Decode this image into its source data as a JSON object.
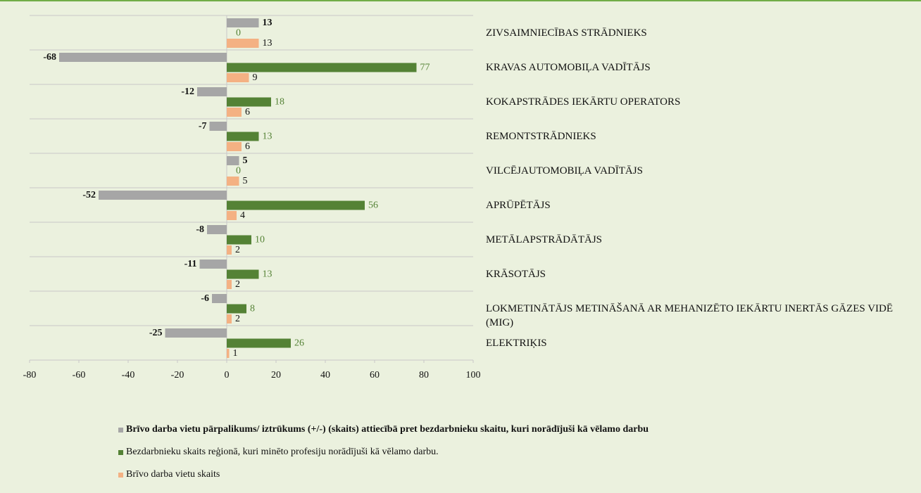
{
  "chart_data": {
    "type": "hbar",
    "categories": [
      "ZIVSAIMNIECĪBAS STRĀDNIEKS",
      "KRAVAS AUTOMOBIĻA VADĪTĀJS",
      "KOKAPSTRĀDES IEKĀRTU OPERATORS",
      "REMONTSTRĀDNIEKS",
      "VILCĒJAUTOMOBIĻA VADĪTĀJS",
      "APRŪPĒTĀJS",
      "METĀLAPSTRĀDĀTĀJS",
      "KRĀSOTĀJS",
      "LOKMETINĀTĀJS METINĀŠANĀ AR MEHANIZĒTO IEKĀRTU INERTĀS GĀZES VIDĒ (MIG)",
      "ELEKTRIĶIS"
    ],
    "series": [
      {
        "name": "Brīvo darba vietu pārpalikums/ iztrūkums (+/-) (skaits) attiecībā pret bezdarbnieku skaitu, kuri norādījuši kā vēlamo darbu",
        "color": "#a6a6a6",
        "values": [
          13,
          -68,
          -12,
          -7,
          5,
          -52,
          -8,
          -11,
          -6,
          -25
        ]
      },
      {
        "name": "Bezdarbnieku skaits reģionā, kuri minēto profesiju norādījuši kā vēlamo darbu.",
        "color": "#548235",
        "values": [
          0,
          77,
          18,
          13,
          0,
          56,
          10,
          13,
          8,
          26
        ]
      },
      {
        "name": "Brīvo darba vietu skaits",
        "color": "#f4b183",
        "values": [
          13,
          9,
          6,
          6,
          5,
          4,
          2,
          2,
          2,
          1
        ]
      }
    ],
    "xlim": [
      -80,
      100
    ],
    "xticks": [
      -80,
      -60,
      -40,
      -20,
      0,
      20,
      40,
      60,
      80,
      100
    ]
  }
}
